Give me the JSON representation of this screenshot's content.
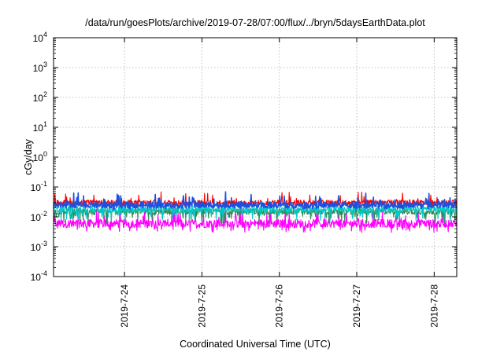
{
  "chart_data": {
    "type": "line",
    "title": "/data/run/goesPlots/archive/2019-07-28/07:00/flux/../bryn/5daysEarthData.plot",
    "xlabel": "Coordinated Universal Time (UTC)",
    "ylabel": "cGy/day",
    "yscale": "log",
    "ylim": [
      0.0001,
      10000
    ],
    "y_ticks": [
      {
        "exp": "-4",
        "value": 0.0001
      },
      {
        "exp": "-3",
        "value": 0.001
      },
      {
        "exp": "-2",
        "value": 0.01
      },
      {
        "exp": "-1",
        "value": 0.1
      },
      {
        "exp": "0",
        "value": 1
      },
      {
        "exp": "1",
        "value": 10
      },
      {
        "exp": "2",
        "value": 100
      },
      {
        "exp": "3",
        "value": 1000
      },
      {
        "exp": "4",
        "value": 10000
      }
    ],
    "xlim": [
      "2019-07-23 02:00",
      "2019-07-28 07:00"
    ],
    "x_ticks": [
      "2019-7-24",
      "2019-7-25",
      "2019-7-26",
      "2019-7-27",
      "2019-7-28"
    ],
    "grid": true,
    "series": [
      {
        "color": "#ff0000",
        "typical": 0.03,
        "low": 0.022,
        "high": 0.07
      },
      {
        "color": "#1e50dc",
        "typical": 0.025,
        "low": 0.018,
        "high": 0.07
      },
      {
        "color": "#00c8c8",
        "typical": 0.018,
        "low": 0.007,
        "high": 0.03
      },
      {
        "color": "#2e8b57",
        "typical": 0.015,
        "low": 0.006,
        "high": 0.022
      },
      {
        "color": "#ff00ff",
        "typical": 0.006,
        "low": 0.003,
        "high": 0.02
      }
    ]
  }
}
